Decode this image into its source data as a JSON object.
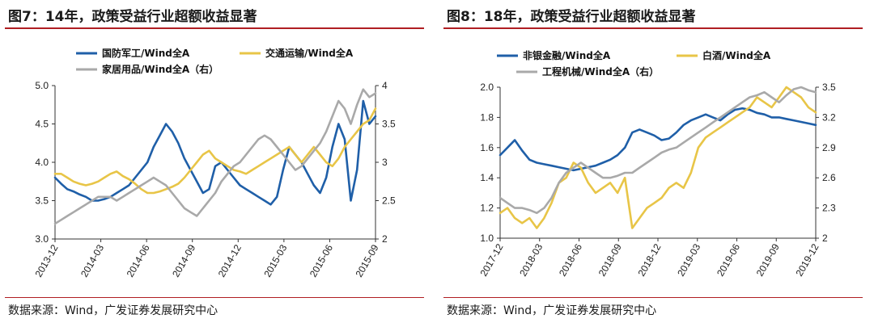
{
  "panels": [
    {
      "title": "图7：14年，政策受益行业超额收益显著",
      "source": "数据来源：Wind，广发证券发展研究中心",
      "chart_data": {
        "type": "line",
        "x_ticks": [
          "2013-12",
          "2014-03",
          "2014-06",
          "2014-09",
          "2014-12",
          "2015-03",
          "2015-06",
          "2015-09"
        ],
        "left_axis": {
          "min": 3.0,
          "max": 5.0,
          "ticks": [
            "3.0",
            "3.5",
            "4.0",
            "4.5",
            "5.0"
          ]
        },
        "right_axis": {
          "min": 2,
          "max": 4,
          "ticks": [
            "2",
            "2.5",
            "3",
            "3.5",
            "4"
          ]
        },
        "grid": false,
        "legend_position": "top",
        "series": [
          {
            "name": "国防军工/Wind全A",
            "axis": "left",
            "color": "#1f5fa8",
            "values": [
              3.8,
              3.72,
              3.65,
              3.62,
              3.58,
              3.55,
              3.5,
              3.5,
              3.52,
              3.55,
              3.6,
              3.65,
              3.7,
              3.8,
              3.9,
              4.0,
              4.2,
              4.35,
              4.5,
              4.4,
              4.25,
              4.05,
              3.9,
              3.75,
              3.6,
              3.65,
              3.95,
              4.0,
              3.9,
              3.8,
              3.7,
              3.65,
              3.6,
              3.55,
              3.5,
              3.45,
              3.55,
              3.9,
              4.2,
              4.1,
              4.0,
              3.85,
              3.7,
              3.6,
              3.8,
              4.2,
              4.5,
              4.3,
              3.5,
              3.9,
              4.8,
              4.5,
              4.6
            ]
          },
          {
            "name": "交通运输/Wind全A",
            "axis": "left",
            "color": "#e8c547",
            "values": [
              3.85,
              3.85,
              3.8,
              3.75,
              3.72,
              3.7,
              3.72,
              3.75,
              3.8,
              3.85,
              3.88,
              3.82,
              3.78,
              3.72,
              3.65,
              3.6,
              3.6,
              3.62,
              3.65,
              3.68,
              3.72,
              3.8,
              3.9,
              4.0,
              4.1,
              4.15,
              4.05,
              4.0,
              3.95,
              3.9,
              3.88,
              3.85,
              3.9,
              3.95,
              4.0,
              4.05,
              4.1,
              4.15,
              4.2,
              4.1,
              4.0,
              4.1,
              4.2,
              4.1,
              4.0,
              3.95,
              4.05,
              4.2,
              4.3,
              4.4,
              4.5,
              4.55,
              4.7
            ]
          },
          {
            "name": "家居用品/Wind全A（右）",
            "axis": "right",
            "color": "#a9a9a9",
            "values": [
              2.2,
              2.25,
              2.3,
              2.35,
              2.4,
              2.45,
              2.5,
              2.55,
              2.55,
              2.55,
              2.5,
              2.55,
              2.6,
              2.65,
              2.7,
              2.75,
              2.8,
              2.75,
              2.7,
              2.6,
              2.5,
              2.4,
              2.35,
              2.3,
              2.4,
              2.5,
              2.6,
              2.75,
              2.85,
              2.95,
              3.0,
              3.1,
              3.2,
              3.3,
              3.35,
              3.3,
              3.2,
              3.1,
              3.0,
              2.9,
              2.95,
              3.05,
              3.15,
              3.25,
              3.4,
              3.6,
              3.8,
              3.7,
              3.5,
              3.75,
              3.95,
              3.85,
              3.9
            ]
          }
        ]
      }
    },
    {
      "title": "图8：18年，政策受益行业超额收益显著",
      "source": "数据来源：Wind，广发证券发展研究中心",
      "chart_data": {
        "type": "line",
        "x_ticks": [
          "2017-12",
          "2018-03",
          "2018-06",
          "2018-09",
          "2018-12",
          "2019-03",
          "2019-06",
          "2019-09",
          "2019-12"
        ],
        "left_axis": {
          "min": 1.0,
          "max": 2.0,
          "ticks": [
            "1.0",
            "1.2",
            "1.4",
            "1.6",
            "1.8",
            "2.0"
          ]
        },
        "right_axis": {
          "min": 2,
          "max": 3.5,
          "ticks": [
            "2",
            "2.3",
            "2.6",
            "2.9",
            "3.2",
            "3.5"
          ]
        },
        "grid": false,
        "legend_position": "top",
        "series": [
          {
            "name": "非银金融/Wind全A",
            "axis": "left",
            "color": "#1f5fa8",
            "values": [
              1.55,
              1.6,
              1.65,
              1.58,
              1.52,
              1.5,
              1.49,
              1.48,
              1.47,
              1.46,
              1.45,
              1.46,
              1.47,
              1.48,
              1.5,
              1.52,
              1.55,
              1.6,
              1.7,
              1.72,
              1.7,
              1.68,
              1.65,
              1.66,
              1.7,
              1.75,
              1.78,
              1.8,
              1.82,
              1.8,
              1.78,
              1.82,
              1.85,
              1.86,
              1.85,
              1.83,
              1.82,
              1.8,
              1.8,
              1.79,
              1.78,
              1.77,
              1.76,
              1.75
            ]
          },
          {
            "name": "白酒/Wind全A",
            "axis": "right",
            "color": "#e8c547",
            "values": [
              2.25,
              2.3,
              2.2,
              2.15,
              2.2,
              2.1,
              2.2,
              2.35,
              2.55,
              2.6,
              2.75,
              2.7,
              2.55,
              2.45,
              2.5,
              2.55,
              2.45,
              2.6,
              2.1,
              2.2,
              2.3,
              2.35,
              2.4,
              2.5,
              2.55,
              2.5,
              2.65,
              2.9,
              3.0,
              3.05,
              3.1,
              3.15,
              3.2,
              3.25,
              3.3,
              3.4,
              3.35,
              3.3,
              3.4,
              3.5,
              3.45,
              3.4,
              3.3,
              3.25
            ]
          },
          {
            "name": "工程机械/Wind全A（右）",
            "axis": "right",
            "color": "#a9a9a9",
            "values": [
              2.4,
              2.35,
              2.3,
              2.3,
              2.28,
              2.25,
              2.3,
              2.4,
              2.55,
              2.65,
              2.7,
              2.75,
              2.7,
              2.65,
              2.6,
              2.6,
              2.62,
              2.65,
              2.65,
              2.7,
              2.75,
              2.8,
              2.85,
              2.88,
              2.9,
              2.95,
              3.0,
              3.05,
              3.1,
              3.15,
              3.2,
              3.25,
              3.3,
              3.35,
              3.4,
              3.42,
              3.45,
              3.4,
              3.35,
              3.42,
              3.48,
              3.5,
              3.47,
              3.45
            ]
          }
        ]
      }
    }
  ]
}
